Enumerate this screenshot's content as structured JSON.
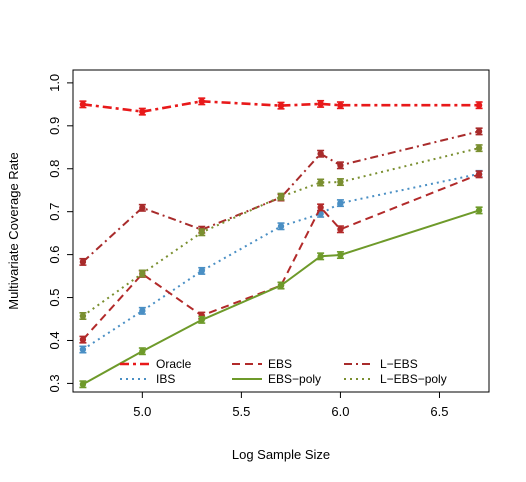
{
  "chart_data": {
    "type": "line",
    "title": "",
    "xlabel": "Log Sample Size",
    "ylabel": "Multivariate Coverage Rate",
    "xlim": [
      4.65,
      6.75
    ],
    "ylim": [
      0.28,
      1.03
    ],
    "xticks": [
      "5.0",
      "5.5",
      "6.0",
      "6.5"
    ],
    "xtick_values": [
      5.0,
      5.5,
      6.0,
      6.5
    ],
    "yticks": [
      "0.3",
      "0.4",
      "0.5",
      "0.6",
      "0.7",
      "0.8",
      "0.9",
      "1.0"
    ],
    "ytick_values": [
      0.3,
      0.4,
      0.5,
      0.6,
      0.7,
      0.8,
      0.9,
      1.0
    ],
    "x": [
      4.7,
      5.0,
      5.3,
      5.7,
      5.9,
      6.0,
      6.7
    ],
    "grid": false,
    "legend_position": "bottom",
    "series": [
      {
        "name": "Oracle",
        "color": "#e8191a",
        "dash": "dashdot-bold",
        "values": [
          0.95,
          0.933,
          0.957,
          0.947,
          0.951,
          0.948,
          0.948
        ]
      },
      {
        "name": "IBS",
        "color": "#4a8fc4",
        "dash": "dotted",
        "values": [
          0.379,
          0.469,
          0.562,
          0.666,
          0.695,
          0.72,
          0.788
        ]
      },
      {
        "name": "EBS",
        "color": "#b22a2a",
        "dash": "dashed",
        "values": [
          0.402,
          0.555,
          0.458,
          0.528,
          0.71,
          0.659,
          0.787
        ]
      },
      {
        "name": "EBS−poly",
        "color": "#6e9a2a",
        "dash": "solid",
        "values": [
          0.298,
          0.375,
          0.448,
          0.528,
          0.596,
          0.599,
          0.703
        ]
      },
      {
        "name": "L−EBS",
        "color": "#a82b2b",
        "dash": "dashdot",
        "values": [
          0.583,
          0.709,
          0.658,
          0.733,
          0.835,
          0.808,
          0.887
        ]
      },
      {
        "name": "L−EBS−poly",
        "color": "#7a8f30",
        "dash": "dotted",
        "values": [
          0.457,
          0.556,
          0.652,
          0.735,
          0.768,
          0.769,
          0.848
        ]
      }
    ]
  }
}
